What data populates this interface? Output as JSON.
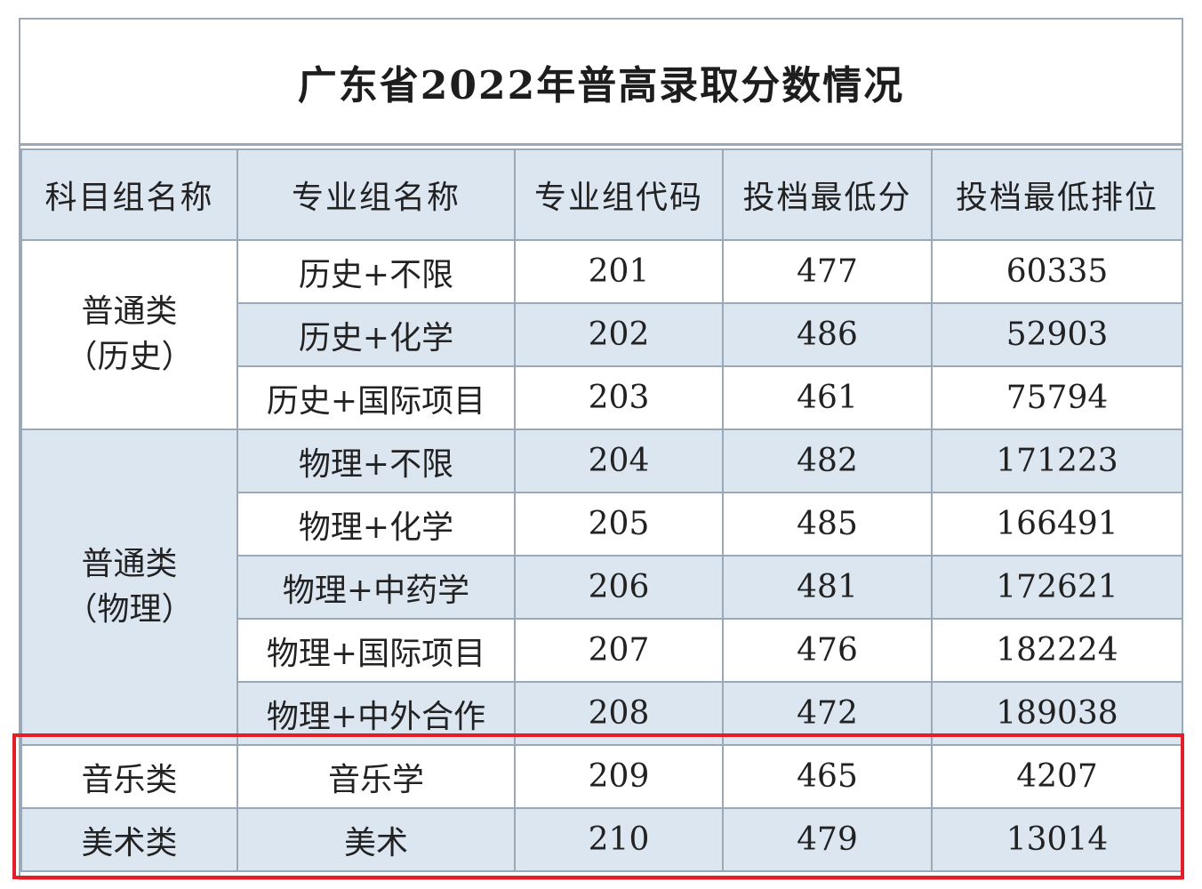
{
  "title": "广东省2022年普高录取分数情况",
  "columns": [
    "科目组名称",
    "专业组名称",
    "专业组代码",
    "投档最低分",
    "投档最低排位"
  ],
  "groups": [
    {
      "name_line1": "普通类",
      "name_line2": "（历史）"
    },
    {
      "name_line1": "普通类",
      "name_line2": "（物理）"
    },
    {
      "name_line1": "音乐类",
      "name_line2": ""
    },
    {
      "name_line1": "美术类",
      "name_line2": ""
    }
  ],
  "rows": [
    {
      "major_group": "历史+不限",
      "code": "201",
      "min_score": "477",
      "min_rank": "60335"
    },
    {
      "major_group": "历史+化学",
      "code": "202",
      "min_score": "486",
      "min_rank": "52903"
    },
    {
      "major_group": "历史+国际项目",
      "code": "203",
      "min_score": "461",
      "min_rank": "75794"
    },
    {
      "major_group": "物理+不限",
      "code": "204",
      "min_score": "482",
      "min_rank": "171223"
    },
    {
      "major_group": "物理+化学",
      "code": "205",
      "min_score": "485",
      "min_rank": "166491"
    },
    {
      "major_group": "物理+中药学",
      "code": "206",
      "min_score": "481",
      "min_rank": "172621"
    },
    {
      "major_group": "物理+国际项目",
      "code": "207",
      "min_score": "476",
      "min_rank": "182224"
    },
    {
      "major_group": "物理+中外合作",
      "code": "208",
      "min_score": "472",
      "min_rank": "189038"
    },
    {
      "major_group": "音乐学",
      "code": "209",
      "min_score": "465",
      "min_rank": "4207"
    },
    {
      "major_group": "美术",
      "code": "210",
      "min_score": "479",
      "min_rank": "13014"
    }
  ],
  "colors": {
    "header_fill": "#dce6f1",
    "border": "#9aa9b8",
    "highlight": "#e41e26"
  }
}
